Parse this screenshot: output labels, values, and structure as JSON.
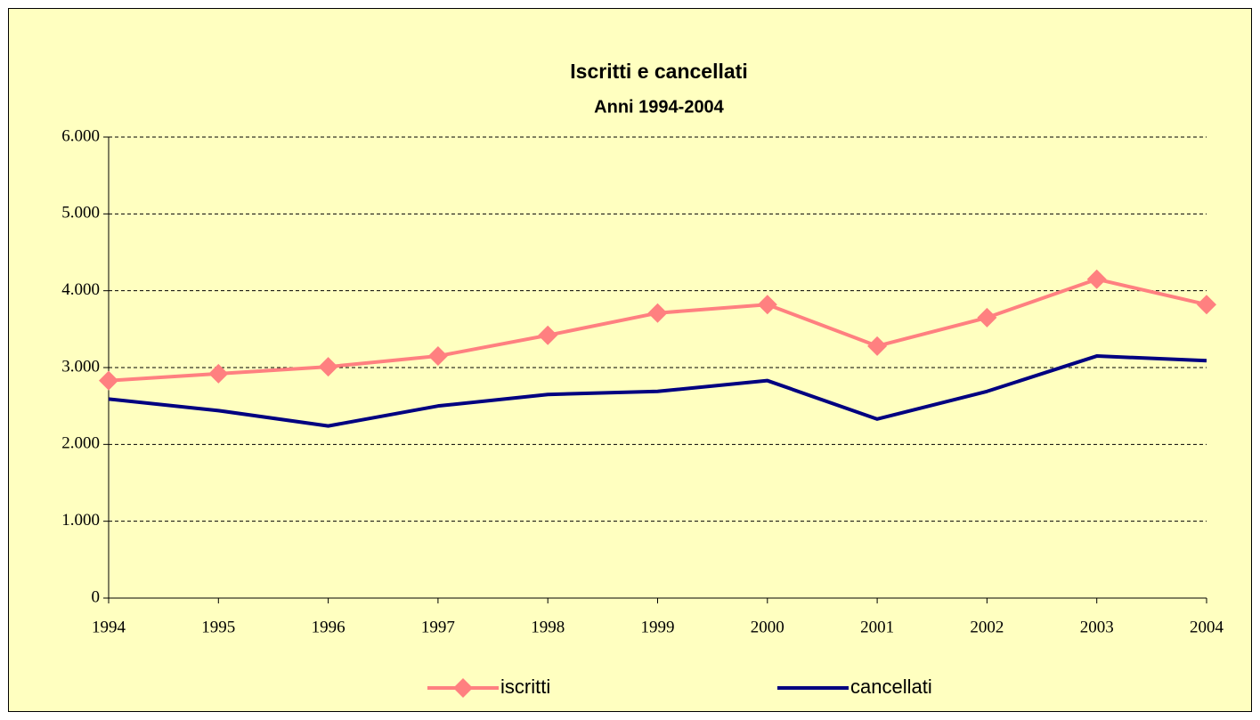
{
  "chart_data": {
    "type": "line",
    "title": "Iscritti e  cancellati",
    "subtitle": "Anni 1994-2004",
    "categories": [
      "1994",
      "1995",
      "1996",
      "1997",
      "1998",
      "1999",
      "2000",
      "2001",
      "2002",
      "2003",
      "2004"
    ],
    "series": [
      {
        "name": "iscritti",
        "color": "#ff8080",
        "marker": "diamond",
        "values": [
          2830,
          2920,
          3010,
          3150,
          3420,
          3710,
          3820,
          3280,
          3650,
          4150,
          3820
        ]
      },
      {
        "name": "cancellati",
        "color": "#000080",
        "marker": "none",
        "values": [
          2590,
          2440,
          2240,
          2500,
          2650,
          2690,
          2830,
          2330,
          2690,
          3150,
          3090
        ]
      }
    ],
    "ylim": [
      0,
      6000
    ],
    "yticks": [
      0,
      {
        "value": 1000,
        "label": "1.000"
      },
      {
        "value": 2000,
        "label": "2.000"
      },
      {
        "value": 3000,
        "label": "3.000"
      },
      {
        "value": 4000,
        "label": "4.000"
      },
      {
        "value": 5000,
        "label": "5.000"
      },
      {
        "value": 6000,
        "label": "6.000"
      }
    ],
    "grid": true,
    "legend": "bottom",
    "background": "#ffffc0"
  }
}
